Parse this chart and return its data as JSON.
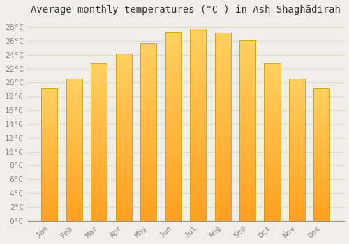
{
  "title": "Average monthly temperatures (°C ) in Ash Shaghādirah",
  "months": [
    "Jan",
    "Feb",
    "Mar",
    "Apr",
    "May",
    "Jun",
    "Jul",
    "Aug",
    "Sep",
    "Oct",
    "Nov",
    "Dec"
  ],
  "values": [
    19.2,
    20.5,
    22.8,
    24.2,
    25.7,
    27.3,
    27.8,
    27.2,
    26.1,
    22.8,
    20.5,
    19.2
  ],
  "bar_color_top": "#FFD060",
  "bar_color_bottom": "#FFA020",
  "bar_edge_color": "#C8A000",
  "background_color": "#F0EEE8",
  "grid_color": "#DDDDCC",
  "ylim": [
    0,
    29
  ],
  "ytick_step": 2,
  "title_fontsize": 10,
  "tick_fontsize": 8,
  "font_family": "monospace"
}
